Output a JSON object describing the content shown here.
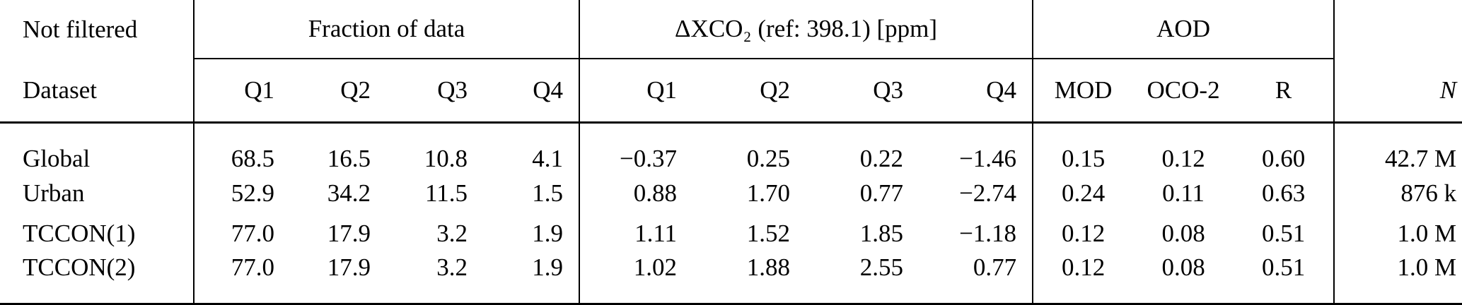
{
  "table": {
    "group_headers": [
      "Not filtered",
      "Fraction of data",
      "ΔXCO₂ (ref: 398.1) [ppm]",
      "AOD"
    ],
    "columns": [
      "Dataset",
      "Q1",
      "Q2",
      "Q3",
      "Q4",
      "Q1",
      "Q2",
      "Q3",
      "Q4",
      "MOD",
      "OCO-2",
      "R",
      "N"
    ],
    "rows": [
      [
        "Global",
        "68.5",
        "16.5",
        "10.8",
        "4.1",
        "−0.37",
        "0.25",
        "0.22",
        "−1.46",
        "0.15",
        "0.12",
        "0.60",
        "42.7 M"
      ],
      [
        "Urban",
        "52.9",
        "34.2",
        "11.5",
        "1.5",
        "0.88",
        "1.70",
        "0.77",
        "−2.74",
        "0.24",
        "0.11",
        "0.63",
        "876 k"
      ],
      [
        "TCCON(1)",
        "77.0",
        "17.9",
        "3.2",
        "1.9",
        "1.11",
        "1.52",
        "1.85",
        "−1.18",
        "0.12",
        "0.08",
        "0.51",
        "1.0 M"
      ],
      [
        "TCCON(2)",
        "77.0",
        "17.9",
        "3.2",
        "1.9",
        "1.02",
        "1.88",
        "2.55",
        "0.77",
        "0.12",
        "0.08",
        "0.51",
        "1.0 M"
      ]
    ]
  }
}
